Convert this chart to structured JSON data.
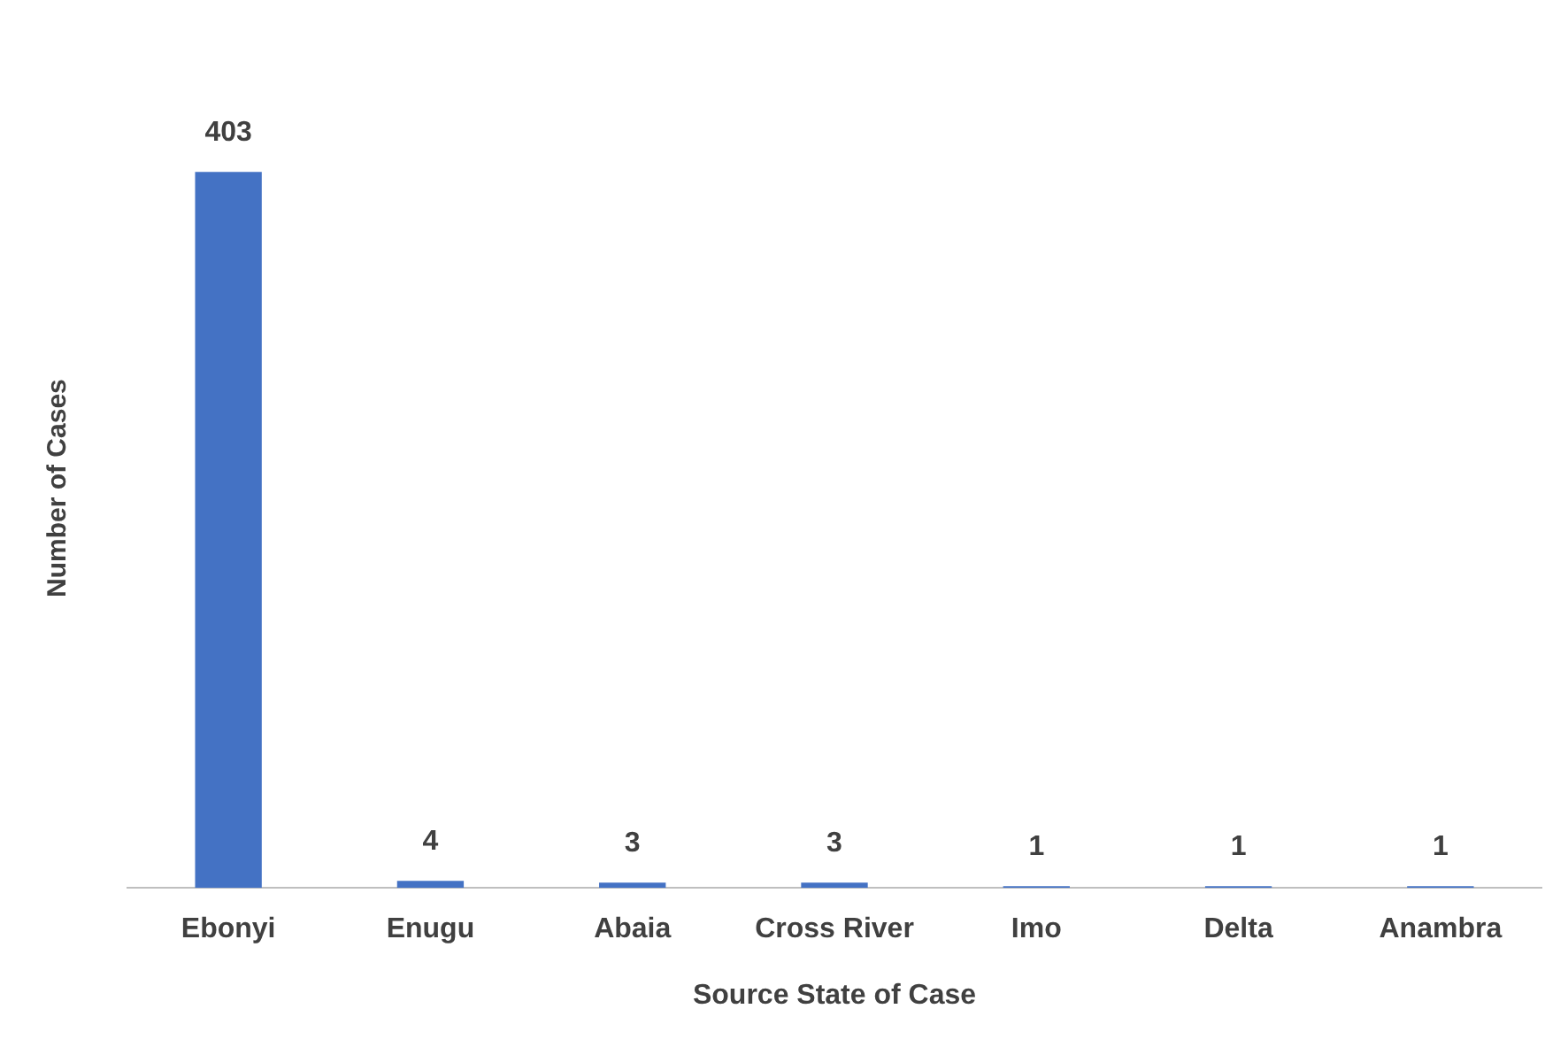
{
  "chart_data": {
    "type": "bar",
    "xlabel": "Source State of Case",
    "ylabel": "Number of Cases",
    "categories": [
      "Ebonyi",
      "Enugu",
      "Abaia",
      "Cross River",
      "Imo",
      "Delta",
      "Anambra"
    ],
    "values": [
      403,
      4,
      3,
      3,
      1,
      1,
      1
    ],
    "color": "#4472c4",
    "data_labels": true,
    "grid": false,
    "legend": false
  }
}
